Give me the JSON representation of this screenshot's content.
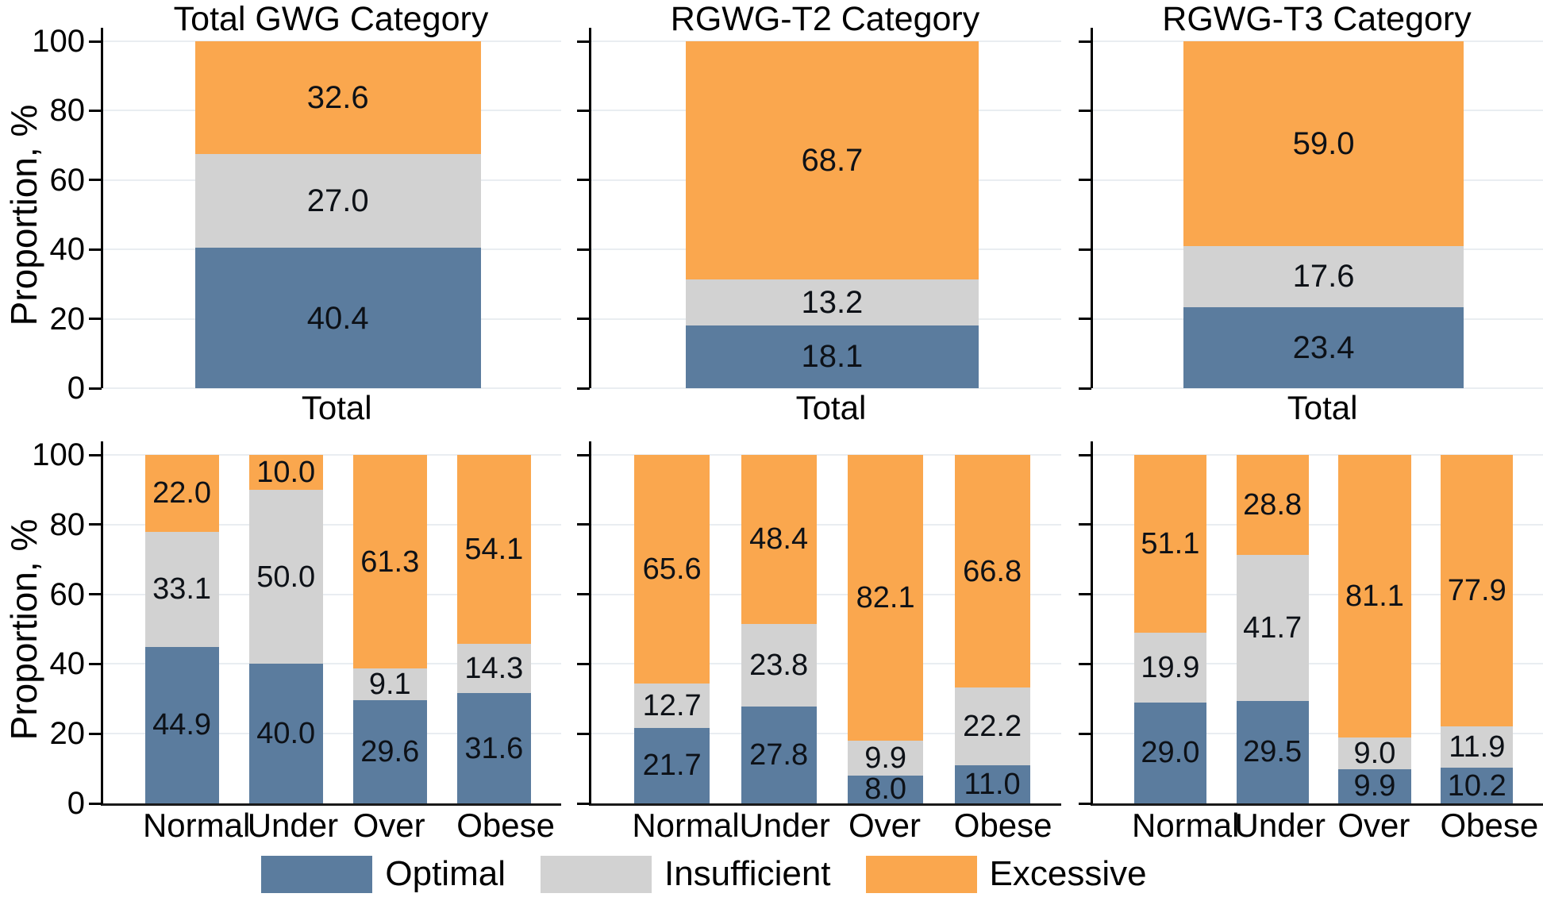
{
  "colors": {
    "optimal": "#5b7c9e",
    "insufficient": "#d2d2d2",
    "excessive": "#faa74e",
    "gridline": "#e9edf1",
    "axis": "#000000",
    "value_label": "#0d1117"
  },
  "y_axis": {
    "label": "Proportion, %",
    "ticks": [
      0,
      20,
      40,
      60,
      80,
      100
    ],
    "lim": [
      0,
      100
    ],
    "grid": true
  },
  "legend": [
    {
      "label": "Optimal",
      "series": "optimal"
    },
    {
      "label": "Insufficient",
      "series": "insufficient"
    },
    {
      "label": "Excessive",
      "series": "excessive"
    }
  ],
  "chart_data": [
    {
      "id": "total-gwg-overall",
      "type": "bar",
      "stacked": true,
      "row": "top",
      "title": "Total GWG Category",
      "categories": [
        "Total"
      ],
      "series": [
        {
          "name": "Optimal",
          "key": "optimal",
          "values": [
            40.4
          ]
        },
        {
          "name": "Insufficient",
          "key": "insufficient",
          "values": [
            27.0
          ]
        },
        {
          "name": "Excessive",
          "key": "excessive",
          "values": [
            32.6
          ]
        }
      ]
    },
    {
      "id": "rgwg-t2-overall",
      "type": "bar",
      "stacked": true,
      "row": "top",
      "title": "RGWG-T2 Category",
      "categories": [
        "Total"
      ],
      "series": [
        {
          "name": "Optimal",
          "key": "optimal",
          "values": [
            18.1
          ]
        },
        {
          "name": "Insufficient",
          "key": "insufficient",
          "values": [
            13.2
          ]
        },
        {
          "name": "Excessive",
          "key": "excessive",
          "values": [
            68.7
          ]
        }
      ]
    },
    {
      "id": "rgwg-t3-overall",
      "type": "bar",
      "stacked": true,
      "row": "top",
      "title": "RGWG-T3 Category",
      "categories": [
        "Total"
      ],
      "series": [
        {
          "name": "Optimal",
          "key": "optimal",
          "values": [
            23.4
          ]
        },
        {
          "name": "Insufficient",
          "key": "insufficient",
          "values": [
            17.6
          ]
        },
        {
          "name": "Excessive",
          "key": "excessive",
          "values": [
            59.0
          ]
        }
      ]
    },
    {
      "id": "total-gwg-by-bmi",
      "type": "bar",
      "stacked": true,
      "row": "bottom",
      "title": "",
      "categories": [
        "Normal",
        "Under",
        "Over",
        "Obese"
      ],
      "series": [
        {
          "name": "Optimal",
          "key": "optimal",
          "values": [
            44.9,
            40.0,
            29.6,
            31.6
          ]
        },
        {
          "name": "Insufficient",
          "key": "insufficient",
          "values": [
            33.1,
            50.0,
            9.1,
            14.3
          ]
        },
        {
          "name": "Excessive",
          "key": "excessive",
          "values": [
            22.0,
            10.0,
            61.3,
            54.1
          ]
        }
      ]
    },
    {
      "id": "rgwg-t2-by-bmi",
      "type": "bar",
      "stacked": true,
      "row": "bottom",
      "title": "",
      "categories": [
        "Normal",
        "Under",
        "Over",
        "Obese"
      ],
      "series": [
        {
          "name": "Optimal",
          "key": "optimal",
          "values": [
            21.7,
            27.8,
            8.0,
            11.0
          ]
        },
        {
          "name": "Insufficient",
          "key": "insufficient",
          "values": [
            12.7,
            23.8,
            9.9,
            22.2
          ]
        },
        {
          "name": "Excessive",
          "key": "excessive",
          "values": [
            65.6,
            48.4,
            82.1,
            66.8
          ]
        }
      ]
    },
    {
      "id": "rgwg-t3-by-bmi",
      "type": "bar",
      "stacked": true,
      "row": "bottom",
      "title": "",
      "categories": [
        "Normal",
        "Under",
        "Over",
        "Obese"
      ],
      "series": [
        {
          "name": "Optimal",
          "key": "optimal",
          "values": [
            29.0,
            29.5,
            9.9,
            10.2
          ]
        },
        {
          "name": "Insufficient",
          "key": "insufficient",
          "values": [
            19.9,
            41.7,
            9.0,
            11.9
          ]
        },
        {
          "name": "Excessive",
          "key": "excessive",
          "values": [
            51.1,
            28.8,
            81.1,
            77.9
          ]
        }
      ]
    }
  ]
}
